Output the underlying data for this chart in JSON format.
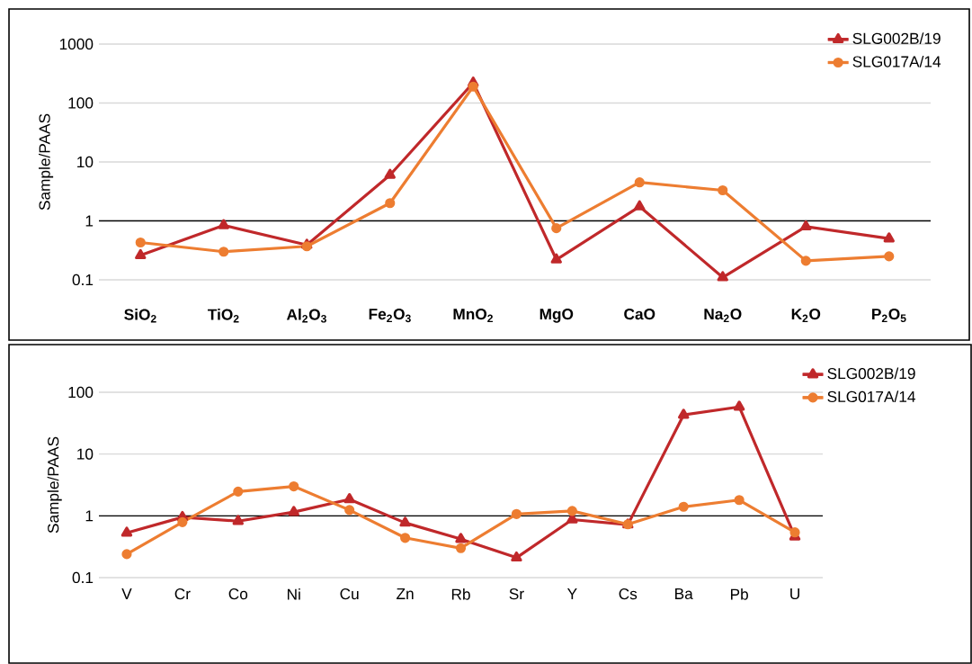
{
  "chart_data": [
    {
      "type": "line",
      "ylabel": "Sample/PAAS",
      "log": true,
      "grid": "y",
      "legend": "top right",
      "categories": [
        "SiO$_{2}$",
        "TiO$_{2}$",
        "Al$_{2}$O$_{3}$",
        "Fe$_{2}$O$_{3}$",
        "MnO$_{2}$",
        "MgO",
        "CaO",
        "Na$_{2}$O",
        "K$_{2}$O",
        "P$_{2}$O$_{5}$"
      ],
      "ylim": [
        0.1,
        1000
      ],
      "yticks": [
        0.1,
        1,
        10,
        100,
        1000
      ],
      "ref_lines": [
        {
          "axis": "y",
          "value": 1,
          "color": "#000000"
        }
      ],
      "series": [
        {
          "name": "SLG002B/19",
          "color": "#c0282a",
          "marker": "triangle",
          "values": [
            0.26,
            0.84,
            0.39,
            6,
            220,
            0.22,
            1.75,
            0.11,
            0.8,
            0.5
          ]
        },
        {
          "name": "SLG017A/14",
          "color": "#ed7d31",
          "marker": "circle",
          "values": [
            0.43,
            0.3,
            0.37,
            2,
            190,
            0.75,
            4.5,
            3.3,
            0.21,
            0.25
          ]
        }
      ]
    },
    {
      "type": "line",
      "ylabel": "Sample/PAAS",
      "log": true,
      "grid": "y",
      "legend": "top right",
      "categories": [
        "V",
        "Cr",
        "Co",
        "Ni",
        "Cu",
        "Zn",
        "Rb",
        "Sr",
        "Y",
        "Cs",
        "Ba",
        "Pb",
        "U"
      ],
      "ylim": [
        0.1,
        100
      ],
      "yticks": [
        0.1,
        1,
        10,
        100
      ],
      "ref_lines": [
        {
          "axis": "y",
          "value": 1,
          "color": "#000000"
        }
      ],
      "series": [
        {
          "name": "SLG002B/19",
          "color": "#c0282a",
          "marker": "triangle",
          "values": [
            0.53,
            0.95,
            0.82,
            1.15,
            1.85,
            0.77,
            0.42,
            0.21,
            0.87,
            0.72,
            43,
            58,
            0.46
          ]
        },
        {
          "name": "SLG017A/14",
          "color": "#ed7d31",
          "marker": "circle",
          "values": [
            0.24,
            0.79,
            2.47,
            3.0,
            1.24,
            0.44,
            0.3,
            1.07,
            1.2,
            0.73,
            1.4,
            1.8,
            0.54
          ]
        }
      ]
    }
  ]
}
